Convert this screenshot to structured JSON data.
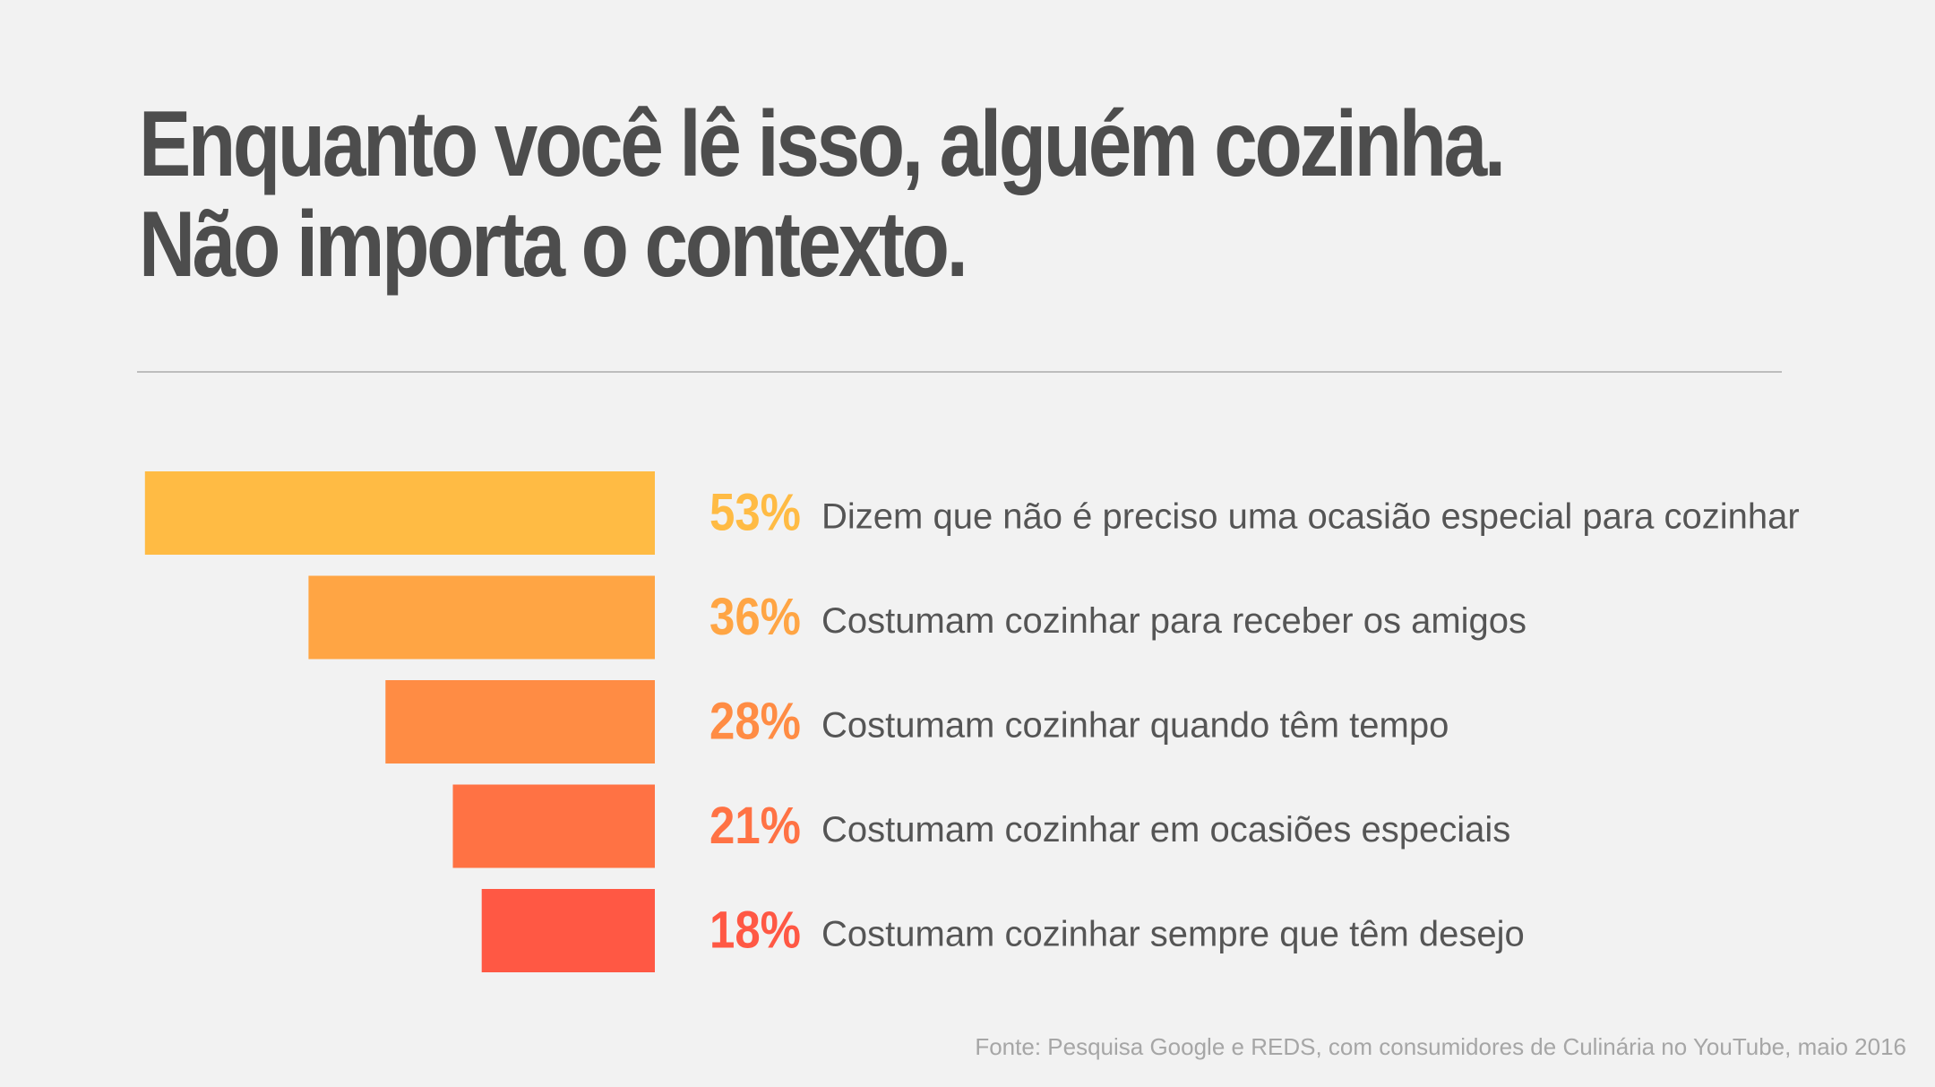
{
  "title": {
    "line1": "Enquanto você lê isso, alguém cozinha.",
    "line2": "Não importa o contexto."
  },
  "chart_data": {
    "type": "bar",
    "orientation": "horizontal",
    "categories": [
      "Dizem que não é preciso uma ocasião especial para cozinhar",
      "Costumam cozinhar para receber os amigos",
      "Costumam cozinhar quando têm tempo",
      "Costumam cozinhar em ocasiões especiais",
      "Costumam cozinhar sempre que têm desejo"
    ],
    "values": [
      53,
      36,
      28,
      21,
      18
    ],
    "value_labels": [
      "53%",
      "36%",
      "28%",
      "21%",
      "18%"
    ],
    "colors": [
      "#ffbb44",
      "#ffa544",
      "#ff8c44",
      "#ff7244",
      "#ff5844"
    ],
    "grid": false,
    "legend": "none"
  },
  "source": "Fonte: Pesquisa Google e REDS, com consumidores de Culinária no YouTube, maio 2016"
}
